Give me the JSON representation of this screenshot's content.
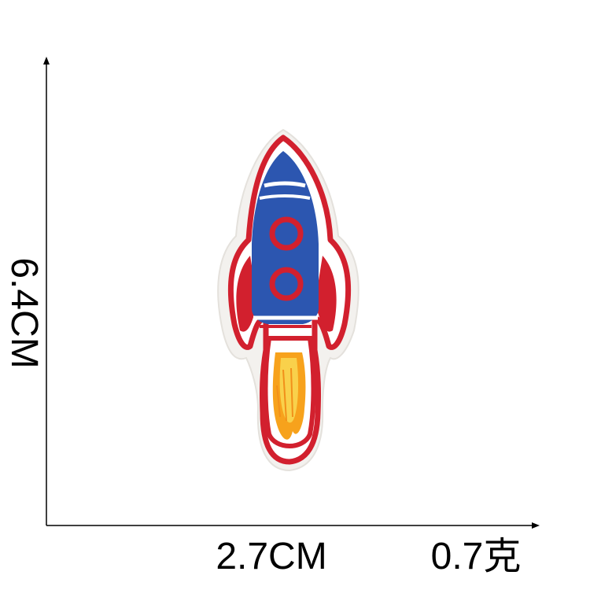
{
  "dimensions": {
    "height_label": "6.4CM",
    "width_label": "2.7CM",
    "weight_label": "0.7克"
  },
  "product": {
    "icon": "rocket-patch-icon",
    "colors": {
      "outline": "#d2202e",
      "body": "#2c56b0",
      "stripe": "#ffffff",
      "flame_inner": "#f7a21c",
      "flame_core": "#f9d14b",
      "backing": "#f3f1ee"
    }
  }
}
